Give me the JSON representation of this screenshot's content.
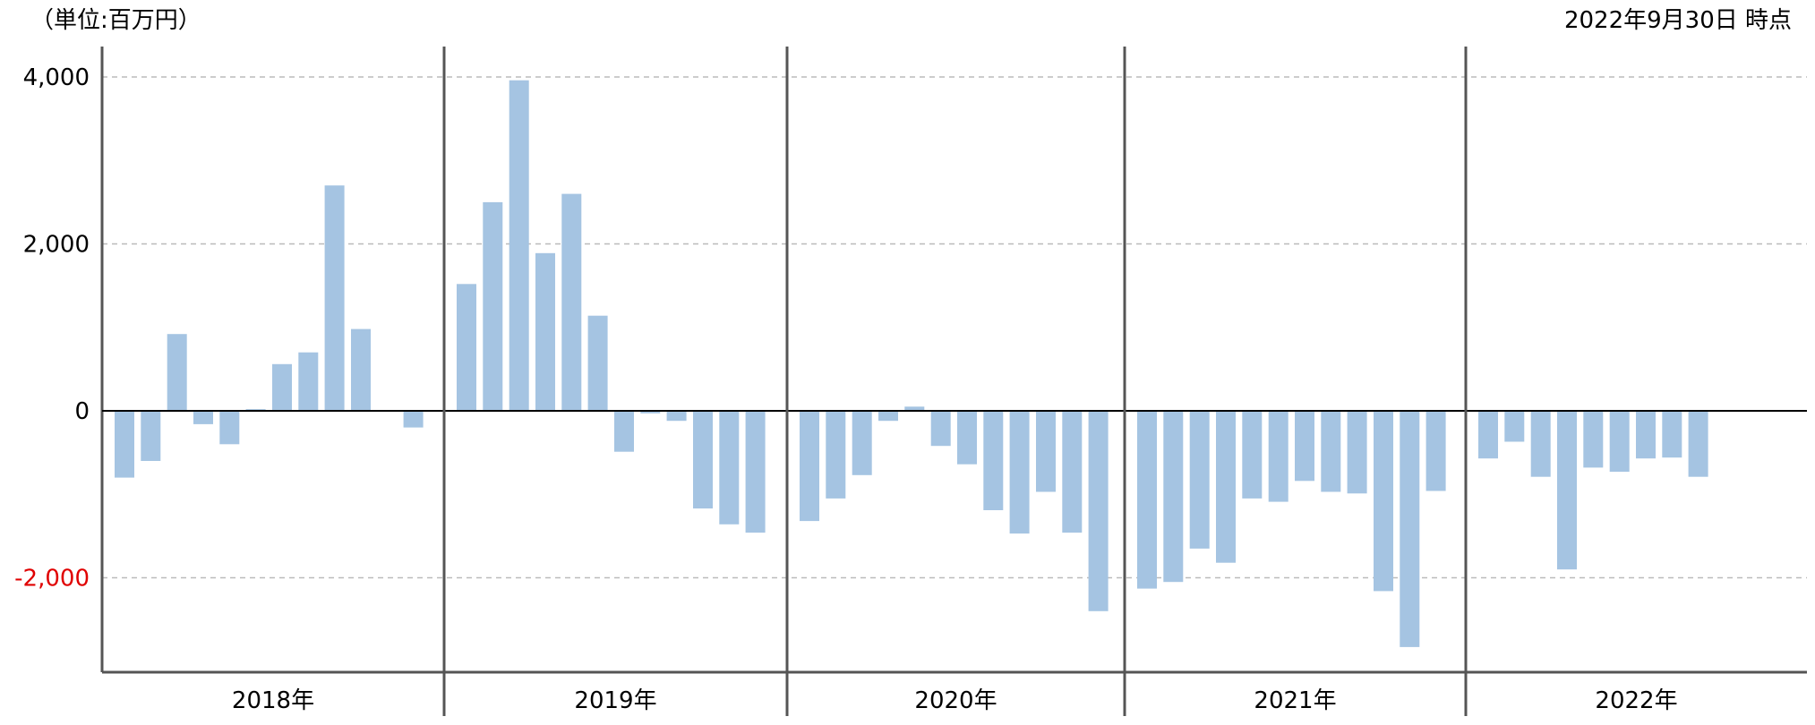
{
  "header": {
    "unit_label": "（単位:百万円）",
    "as_of_label": "2022年9月30日 時点"
  },
  "colors": {
    "bar": "#a5c4e2",
    "negative_tick": "#e00000",
    "axis": "#555555",
    "grid": "#bbbbbb"
  },
  "chart_data": {
    "type": "bar",
    "title": "",
    "xlabel": "",
    "ylabel": "",
    "ylim": [
      -3150,
      4350
    ],
    "y_ticks": [
      {
        "value": 4000,
        "label": "4,000"
      },
      {
        "value": 2000,
        "label": "2,000"
      },
      {
        "value": 0,
        "label": "0"
      },
      {
        "value": -2000,
        "label": "-2,000"
      }
    ],
    "grid": true,
    "years": [
      {
        "label": "2018年",
        "values": [
          -800,
          -600,
          920,
          -160,
          -400,
          20,
          560,
          700,
          2700,
          980,
          0,
          -200
        ]
      },
      {
        "label": "2019年",
        "values": [
          1520,
          2500,
          3960,
          1890,
          2600,
          1140,
          -490,
          -30,
          -120,
          -1170,
          -1360,
          -1460
        ]
      },
      {
        "label": "2020年",
        "values": [
          -1320,
          -1050,
          -770,
          -120,
          50,
          -420,
          -640,
          -1190,
          -1470,
          -970,
          -1460,
          -2400
        ]
      },
      {
        "label": "2021年",
        "values": [
          -2130,
          -2050,
          -1650,
          -1820,
          -1050,
          -1090,
          -840,
          -970,
          -990,
          -2160,
          -2830,
          -960
        ]
      },
      {
        "label": "2022年",
        "values": [
          -570,
          -370,
          -790,
          -1900,
          -680,
          -730,
          -570,
          -560,
          -790
        ]
      }
    ]
  }
}
